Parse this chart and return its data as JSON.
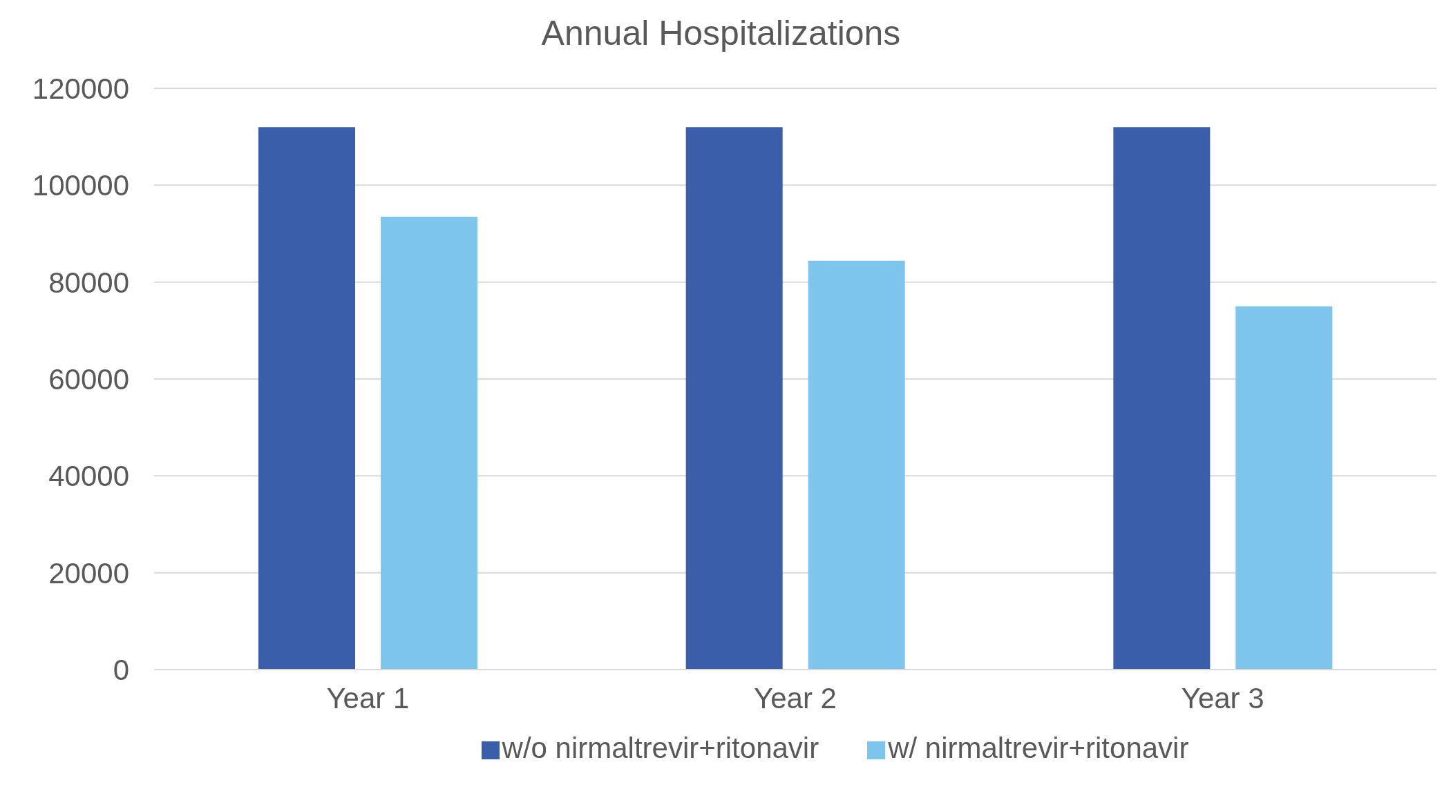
{
  "chart_data": {
    "type": "bar",
    "title": "Annual Hospitalizations",
    "categories": [
      "Year 1",
      "Year 2",
      "Year 3"
    ],
    "series": [
      {
        "name": "w/o nirmaltrevir+ritonavir",
        "color": "#3a5eaa",
        "values": [
          112000,
          112000,
          112000
        ]
      },
      {
        "name": "w/ nirmaltrevir+ritonavir",
        "color": "#7dc5ec",
        "values": [
          93500,
          84400,
          75000
        ]
      }
    ],
    "ylim": [
      0,
      120000
    ],
    "yticks": [
      0,
      20000,
      40000,
      60000,
      80000,
      100000,
      120000
    ],
    "grid": "y",
    "legend": "bottom"
  }
}
